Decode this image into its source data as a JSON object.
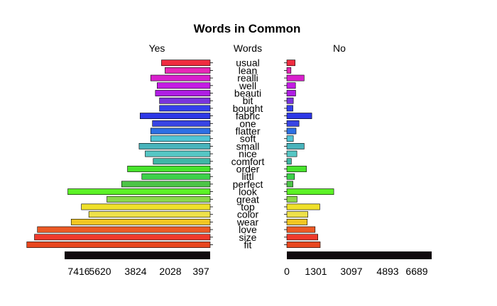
{
  "chart_data": {
    "type": "bar",
    "title": "Words in Common",
    "left_panel_label": "Yes",
    "center_label": "Words",
    "right_panel_label": "No",
    "categories": [
      "fit",
      "size",
      "love",
      "wear",
      "color",
      "top",
      "great",
      "look",
      "perfect",
      "littl",
      "order",
      "comfort",
      "nice",
      "small",
      "soft",
      "flatter",
      "one",
      "fabric",
      "bought",
      "bit",
      "beauti",
      "well",
      "realli",
      "lean",
      "usual"
    ],
    "series": [
      {
        "name": "Yes",
        "values": [
          9340,
          8950,
          8800,
          7080,
          6180,
          6560,
          5260,
          7250,
          4510,
          3480,
          4210,
          2900,
          3310,
          3620,
          3030,
          3030,
          2940,
          3570,
          2580,
          2580,
          2790,
          2700,
          3030,
          2300,
          2480
        ],
        "colors": [
          "#e8461e",
          "#ee3a2c",
          "#ec5a26",
          "#f2c623",
          "#eee14a",
          "#efe02a",
          "#8ad84a",
          "#5cf226",
          "#4dc447",
          "#3dd14a",
          "#48e42d",
          "#3fb6a6",
          "#56c6c4",
          "#49b4bc",
          "#50c4d4",
          "#2d6fe4",
          "#3844e4",
          "#2e38e6",
          "#3440ec",
          "#7a34dc",
          "#b01ee4",
          "#c41ce4",
          "#d820cc",
          "#e728b6",
          "#ef2c40"
        ]
      },
      {
        "name": "No",
        "values": [
          1700,
          1580,
          1440,
          1040,
          1070,
          1680,
          520,
          2390,
          310,
          390,
          1000,
          230,
          510,
          880,
          330,
          470,
          620,
          1270,
          310,
          330,
          450,
          440,
          880,
          210,
          420
        ],
        "colors": [
          "#e8461e",
          "#ee3a2c",
          "#ec5a26",
          "#f2c623",
          "#eee14a",
          "#efe02a",
          "#8ad84a",
          "#5cf226",
          "#4dc447",
          "#3dd14a",
          "#48e42d",
          "#3fb6a6",
          "#56c6c4",
          "#49b4bc",
          "#50c4d4",
          "#2d6fe4",
          "#3844e4",
          "#2e38e6",
          "#3440ec",
          "#7a34dc",
          "#b01ee4",
          "#c41ce4",
          "#d820cc",
          "#e728b6",
          "#ef2c40"
        ]
      }
    ],
    "left_axis": {
      "ticks": [
        "7416",
        "5620",
        "3824",
        "2028",
        "397"
      ],
      "tick_values": [
        7416,
        5620,
        3824,
        2028,
        397
      ],
      "max": 7416
    },
    "right_axis": {
      "ticks": [
        "0",
        "1301",
        "3097",
        "4893",
        "6689"
      ],
      "tick_values": [
        0,
        1301,
        3097,
        4893,
        6689
      ],
      "max": 7416
    },
    "gap_bar_color": "#100a0e",
    "axis_color": "#000000",
    "text_color": "#000000"
  }
}
